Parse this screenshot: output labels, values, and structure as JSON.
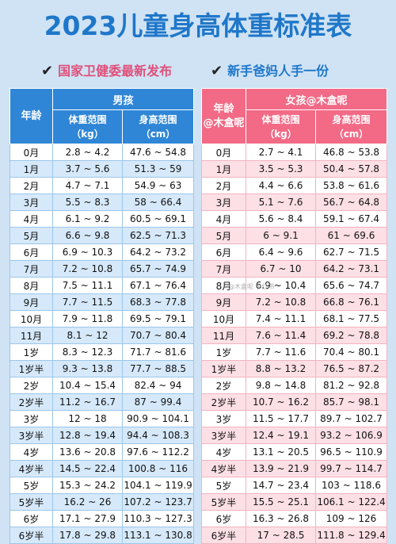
{
  "title": "2023儿童身高体重标准表",
  "subtitles": {
    "left": "国家卫健委最新发布",
    "right": "新手爸妈人手一份",
    "check_icon": "✔"
  },
  "boys": {
    "group_header": "男孩",
    "age_header": "年龄",
    "weight_header_line1": "体重范围",
    "weight_header_line2": "（kg）",
    "height_header_line1": "身高范围",
    "height_header_line2": "（cm）",
    "rows": [
      {
        "age": "0月",
        "weight": "2.8 ~ 4.2",
        "height": "47.6 ~ 54.8"
      },
      {
        "age": "1月",
        "weight": "3.7 ~ 5.6",
        "height": "51.3 ~ 59"
      },
      {
        "age": "2月",
        "weight": "4.7 ~ 7.1",
        "height": "54.9 ~ 63"
      },
      {
        "age": "3月",
        "weight": "5.5 ~ 8.3",
        "height": "58 ~ 66.4"
      },
      {
        "age": "4月",
        "weight": "6.1 ~ 9.2",
        "height": "60.5 ~ 69.1"
      },
      {
        "age": "5月",
        "weight": "6.6 ~ 9.8",
        "height": "62.5 ~ 71.3"
      },
      {
        "age": "6月",
        "weight": "6.9 ~ 10.3",
        "height": "64.2 ~ 73.2"
      },
      {
        "age": "7月",
        "weight": "7.2 ~ 10.8",
        "height": "65.7 ~ 74.9"
      },
      {
        "age": "8月",
        "weight": "7.5 ~ 11.1",
        "height": "67.1 ~ 76.4"
      },
      {
        "age": "9月",
        "weight": "7.7 ~ 11.5",
        "height": "68.3 ~ 77.8"
      },
      {
        "age": "10月",
        "weight": "7.9 ~ 11.8",
        "height": "69.5 ~ 79.1"
      },
      {
        "age": "11月",
        "weight": "8.1 ~ 12",
        "height": "70.7 ~ 80.4"
      },
      {
        "age": "1岁",
        "weight": "8.3 ~ 12.3",
        "height": "71.7 ~ 81.6"
      },
      {
        "age": "1岁半",
        "weight": "9.3 ~ 13.8",
        "height": "77.7 ~ 88.5"
      },
      {
        "age": "2岁",
        "weight": "10.4 ~ 15.4",
        "height": "82.4 ~ 94"
      },
      {
        "age": "2岁半",
        "weight": "11.2 ~ 16.7",
        "height": "87 ~ 99.4"
      },
      {
        "age": "3岁",
        "weight": "12 ~ 18",
        "height": "90.9 ~ 104.1"
      },
      {
        "age": "3岁半",
        "weight": "12.8 ~ 19.4",
        "height": "94.4 ~ 108.3"
      },
      {
        "age": "4岁",
        "weight": "13.6 ~ 20.8",
        "height": "97.6 ~ 112.2"
      },
      {
        "age": "4岁半",
        "weight": "14.5 ~ 22.4",
        "height": "100.8 ~ 116"
      },
      {
        "age": "5岁",
        "weight": "15.3 ~ 24.2",
        "height": "104.1 ~ 119.9"
      },
      {
        "age": "5岁半",
        "weight": "16.2 ~ 26",
        "height": "107.2 ~ 123.7"
      },
      {
        "age": "6岁",
        "weight": "17.1 ~ 27.9",
        "height": "110.3 ~ 127.3"
      },
      {
        "age": "6岁半",
        "weight": "17.8 ~ 29.8",
        "height": "113.1 ~ 130.8"
      }
    ]
  },
  "girls": {
    "group_header": "女孩@木盒呢",
    "age_header_line1": "年龄",
    "age_header_line2": "@木盒呢",
    "weight_header_line1": "体重范围",
    "weight_header_line2": "（kg）",
    "height_header_line1": "身高范围",
    "height_header_line2": "（cm）",
    "rows": [
      {
        "age": "0月",
        "weight": "2.7 ~ 4.1",
        "height": "46.8 ~ 53.8"
      },
      {
        "age": "1月",
        "weight": "3.5 ~ 5.3",
        "height": "50.4 ~ 57.8"
      },
      {
        "age": "2月",
        "weight": "4.4 ~ 6.6",
        "height": "53.8 ~ 61.6"
      },
      {
        "age": "3月",
        "weight": "5.1 ~ 7.6",
        "height": "56.7 ~ 64.8"
      },
      {
        "age": "4月",
        "weight": "5.6 ~ 8.4",
        "height": "59.1 ~ 67.4"
      },
      {
        "age": "5月",
        "weight": "6 ~ 9.1",
        "height": "61 ~ 69.6"
      },
      {
        "age": "6月",
        "weight": "6.4 ~ 9.6",
        "height": "62.7 ~ 71.5"
      },
      {
        "age": "7月",
        "weight": "6.7 ~ 10",
        "height": "64.2 ~ 73.1"
      },
      {
        "age": "8月",
        "weight": "6.9 ~ 10.4",
        "height": "65.6 ~ 74.7"
      },
      {
        "age": "9月",
        "weight": "7.2 ~ 10.8",
        "height": "66.8 ~ 76.1"
      },
      {
        "age": "10月",
        "weight": "7.4 ~ 11.1",
        "height": "68.1 ~ 77.5"
      },
      {
        "age": "11月",
        "weight": "7.6 ~ 11.4",
        "height": "69.2 ~ 78.8"
      },
      {
        "age": "1岁",
        "weight": "7.7 ~ 11.6",
        "height": "70.4 ~ 80.1"
      },
      {
        "age": "1岁半",
        "weight": "8.8 ~ 13.2",
        "height": "76.5 ~ 87.2"
      },
      {
        "age": "2岁",
        "weight": "9.8 ~ 14.8",
        "height": "81.2 ~ 92.8"
      },
      {
        "age": "2岁半",
        "weight": "10.7 ~ 16.2",
        "height": "85.7 ~ 98.1"
      },
      {
        "age": "3岁",
        "weight": "11.5 ~ 17.7",
        "height": "89.7 ~ 102.7"
      },
      {
        "age": "3岁半",
        "weight": "12.4 ~ 19.1",
        "height": "93.2 ~ 106.9"
      },
      {
        "age": "4岁",
        "weight": "13.1 ~ 20.5",
        "height": "96.5 ~ 110.9"
      },
      {
        "age": "4岁半",
        "weight": "13.9 ~ 21.9",
        "height": "99.7 ~ 114.7"
      },
      {
        "age": "5岁",
        "weight": "14.7 ~ 23.4",
        "height": "103 ~ 118.6"
      },
      {
        "age": "5岁半",
        "weight": "15.5 ~ 25.1",
        "height": "106.1 ~ 122.4"
      },
      {
        "age": "6岁",
        "weight": "16.3 ~ 26.8",
        "height": "109 ~ 126"
      },
      {
        "age": "6岁半",
        "weight": "17 ~ 28.5",
        "height": "111.8 ~ 129.4"
      }
    ]
  },
  "watermark": "@木盒呢 小红书"
}
